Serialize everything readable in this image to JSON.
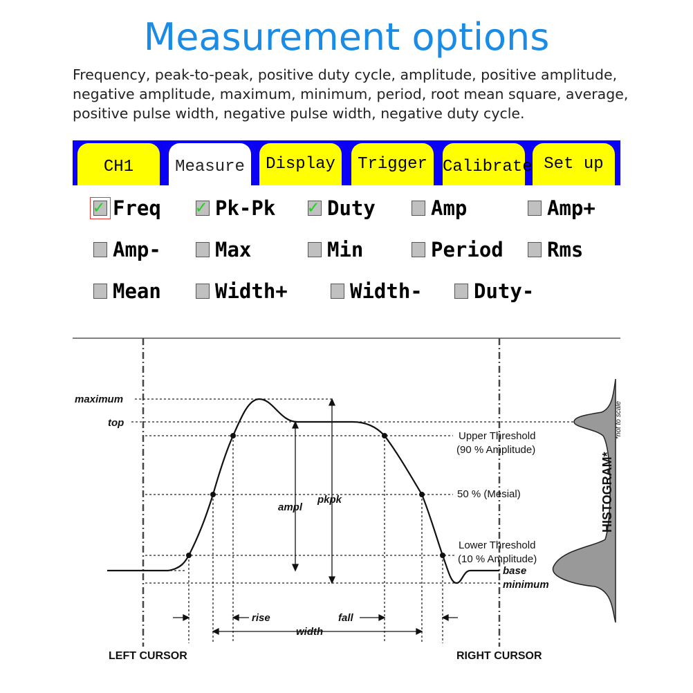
{
  "title": "Measurement options",
  "description": "Frequency, peak-to-peak, positive duty cycle, amplitude, positive amplitude, negative amplitude, maximum, minimum, period, root mean square, average, positive pulse width, negative pulse width, negative duty cycle.",
  "colors": {
    "title": "#1a8ce6",
    "tab_bar": "#0a00f5",
    "tab": "#ffff00",
    "active_tab": "#ffffff",
    "check": "#1fd11f"
  },
  "tabs": [
    {
      "label": "CH1"
    },
    {
      "label": "Measure",
      "active": true
    },
    {
      "label": "Display"
    },
    {
      "label": "Trigger"
    },
    {
      "label": "Calibrate"
    },
    {
      "label": "Set up"
    }
  ],
  "options": [
    {
      "label": "Freq",
      "checked": true,
      "focused": true
    },
    {
      "label": "Pk-Pk",
      "checked": true
    },
    {
      "label": "Duty",
      "checked": true
    },
    {
      "label": "Amp",
      "checked": false
    },
    {
      "label": "Amp+",
      "checked": false
    },
    {
      "label": "Amp-",
      "checked": false
    },
    {
      "label": "Max",
      "checked": false
    },
    {
      "label": "Min",
      "checked": false
    },
    {
      "label": "Period",
      "checked": false
    },
    {
      "label": "Rms",
      "checked": false
    },
    {
      "label": "Mean",
      "checked": false
    },
    {
      "label": "Width+",
      "checked": false
    },
    {
      "label": "Width-",
      "checked": false
    },
    {
      "label": "Duty-",
      "checked": false
    }
  ],
  "diagram": {
    "maximum": "maximum",
    "top": "top",
    "upper": "Upper Threshold",
    "upper_sub": "(90 % Amplitude)",
    "mesial": "50 % (Mesial)",
    "lower": "Lower Threshold",
    "lower_sub": "(10 % Amplitude)",
    "base": "base",
    "minimum": "minimum",
    "ampl": "ampl",
    "pkpk": "pkpk",
    "rise": "rise",
    "fall": "fall",
    "width": "width",
    "left_cursor": "LEFT CURSOR",
    "right_cursor": "RIGHT CURSOR",
    "histogram": "HISTOGRAM*",
    "not_to_scale": "*not to scale"
  }
}
